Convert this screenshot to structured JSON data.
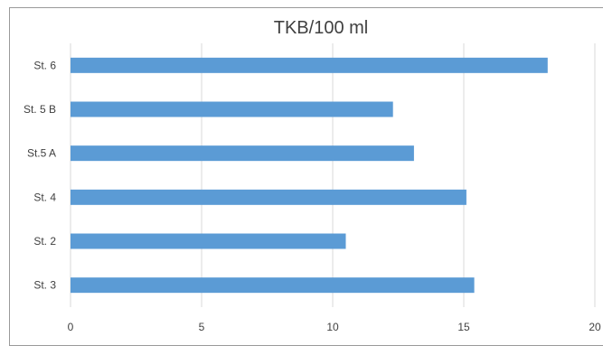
{
  "chart_data": {
    "type": "bar",
    "orientation": "horizontal",
    "title": "TKB/100 ml",
    "xlabel": "",
    "ylabel": "",
    "categories": [
      "St. 6",
      "St. 5 B",
      "St.5 A",
      "St. 4",
      "St. 2",
      "St. 3"
    ],
    "values": [
      18.2,
      12.3,
      13.1,
      15.1,
      10.5,
      15.4
    ],
    "xlim": [
      0,
      20
    ],
    "xticks": [
      0,
      5,
      10,
      15,
      20
    ],
    "grid": true,
    "legend": "none",
    "bar_color": "#5b9bd5"
  }
}
